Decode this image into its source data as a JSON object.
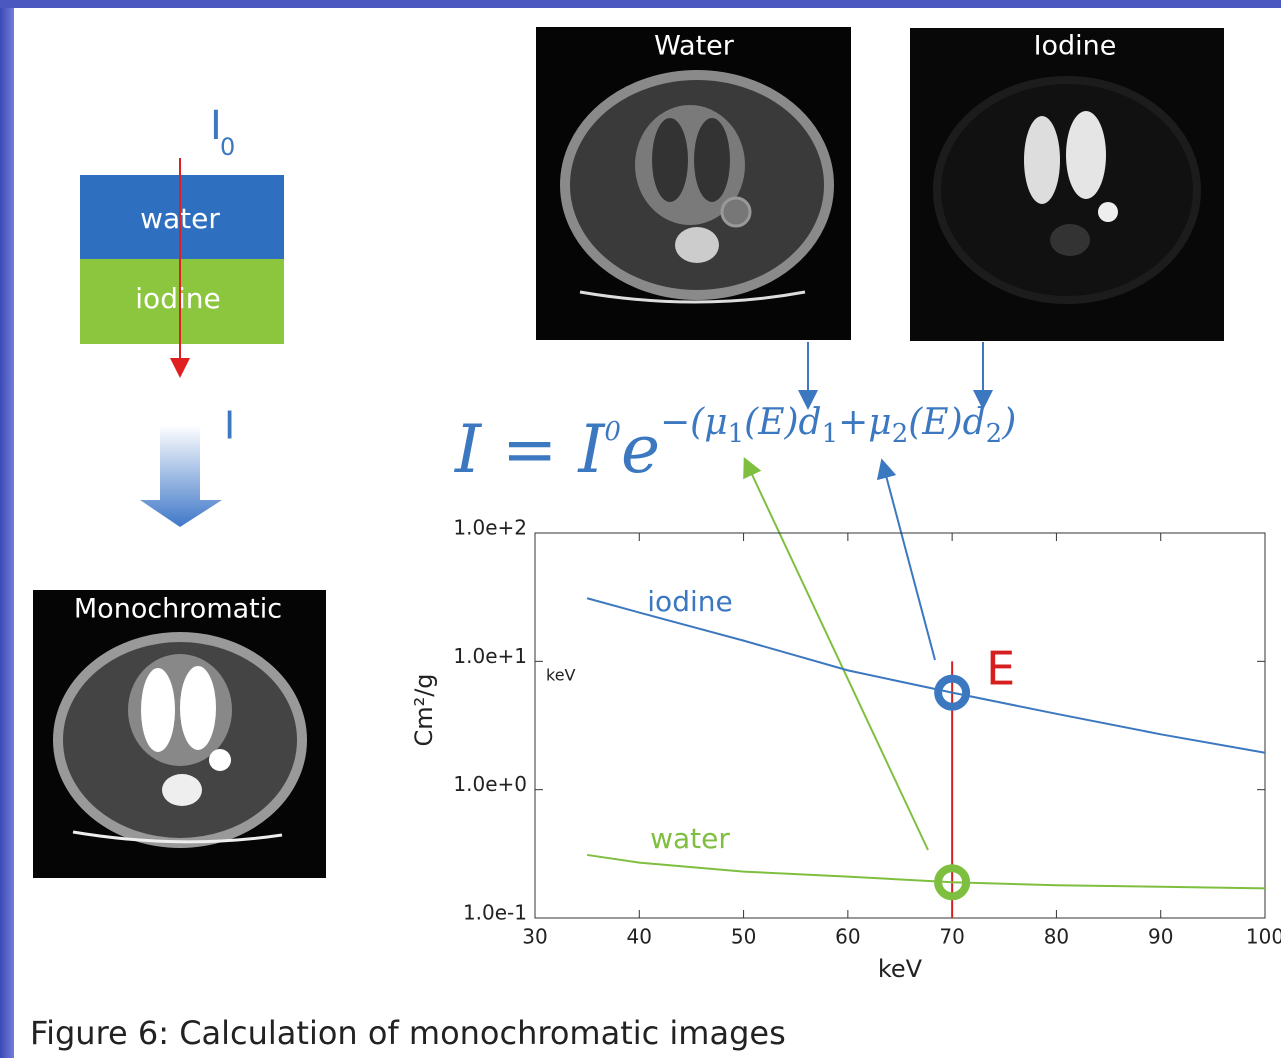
{
  "diagram": {
    "incident": {
      "symbol": "I",
      "subscript": "0"
    },
    "layers": [
      "water",
      "iodine"
    ],
    "transmitted": "I",
    "images": {
      "water": "Water",
      "iodine": "Iodine",
      "mono": "Monochromatic"
    },
    "equation": {
      "lhs": "I = I",
      "sup": "0",
      "base": "e",
      "exponent": [
        "−(μ",
        "1",
        "(E)d",
        "1",
        "+μ",
        "2",
        "(E)d",
        "2",
        ")"
      ]
    },
    "caption": "Figure 6: Calculation of monochromatic images"
  },
  "chart_data": {
    "type": "line",
    "xlabel": "keV",
    "ylabel": "Cm²/g",
    "unit_note": "keV",
    "energy_label": "E",
    "highlight_x": 70,
    "highlight_color": "#d62020",
    "x": [
      35,
      40,
      50,
      60,
      70,
      80,
      90,
      100
    ],
    "series": [
      {
        "name": "iodine",
        "color": "#3b78c0",
        "values": [
          31,
          24,
          14.5,
          8.5,
          5.7,
          3.9,
          2.7,
          1.94
        ]
      },
      {
        "name": "water",
        "color": "#7fbf3f",
        "values": [
          0.31,
          0.27,
          0.23,
          0.21,
          0.19,
          0.18,
          0.175,
          0.17
        ]
      }
    ],
    "xlim": [
      30,
      100
    ],
    "xticks": [
      30,
      40,
      50,
      60,
      70,
      80,
      90,
      100
    ],
    "ylim": [
      0.1,
      100
    ],
    "ylog": true,
    "yticks": [
      {
        "value": 0.1,
        "label": "1.0e-1"
      },
      {
        "value": 1,
        "label": "1.0e+0"
      },
      {
        "value": 10,
        "label": "1.0e+1"
      },
      {
        "value": 100,
        "label": "1.0e+2"
      }
    ]
  }
}
